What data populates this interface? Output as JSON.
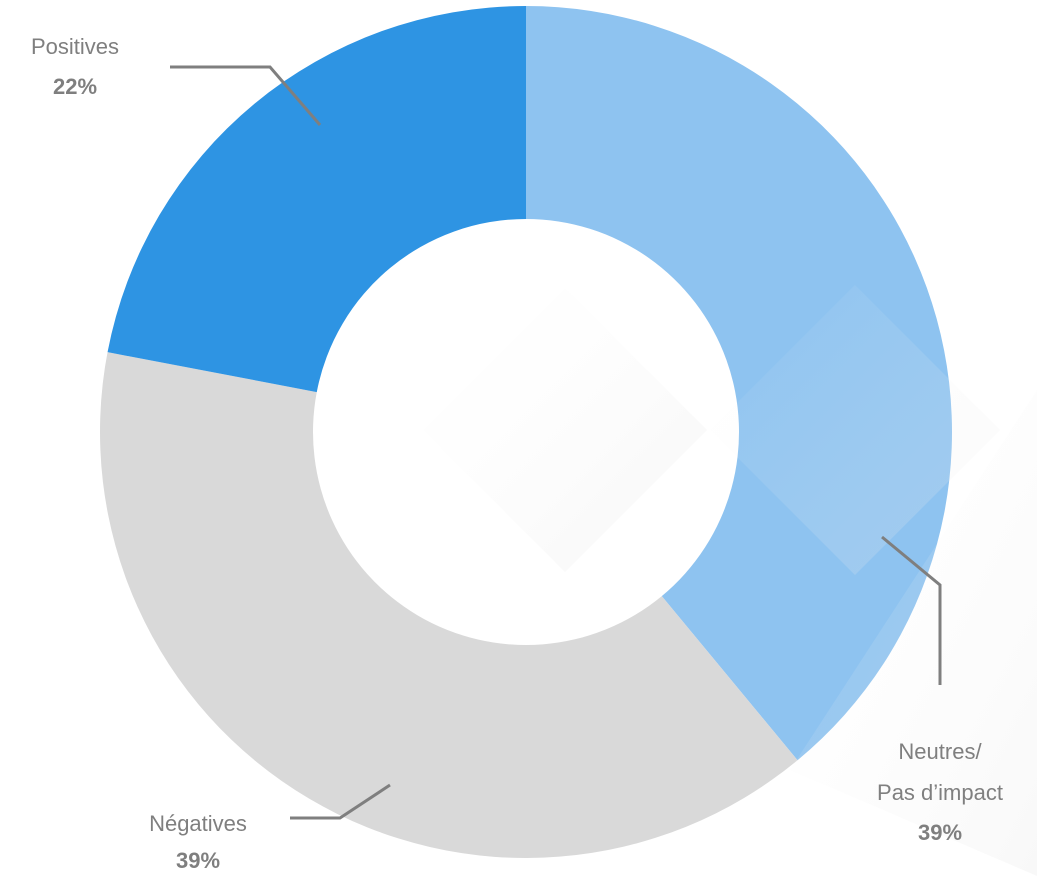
{
  "chart_data": {
    "type": "pie",
    "donut": true,
    "slices": [
      {
        "key": "neutres",
        "label_lines": [
          "Neutres/",
          "Pas d’impact"
        ],
        "pct_label": "39%",
        "value": 39,
        "color": "#8ec3f0"
      },
      {
        "key": "negatives",
        "label_lines": [
          "Négatives"
        ],
        "pct_label": "39%",
        "value": 39,
        "color": "#d9d9d9"
      },
      {
        "key": "positives",
        "label_lines": [
          "Positives"
        ],
        "pct_label": "22%",
        "value": 22,
        "color": "#2e94e3"
      }
    ],
    "label_color": "#7f7f7f"
  }
}
